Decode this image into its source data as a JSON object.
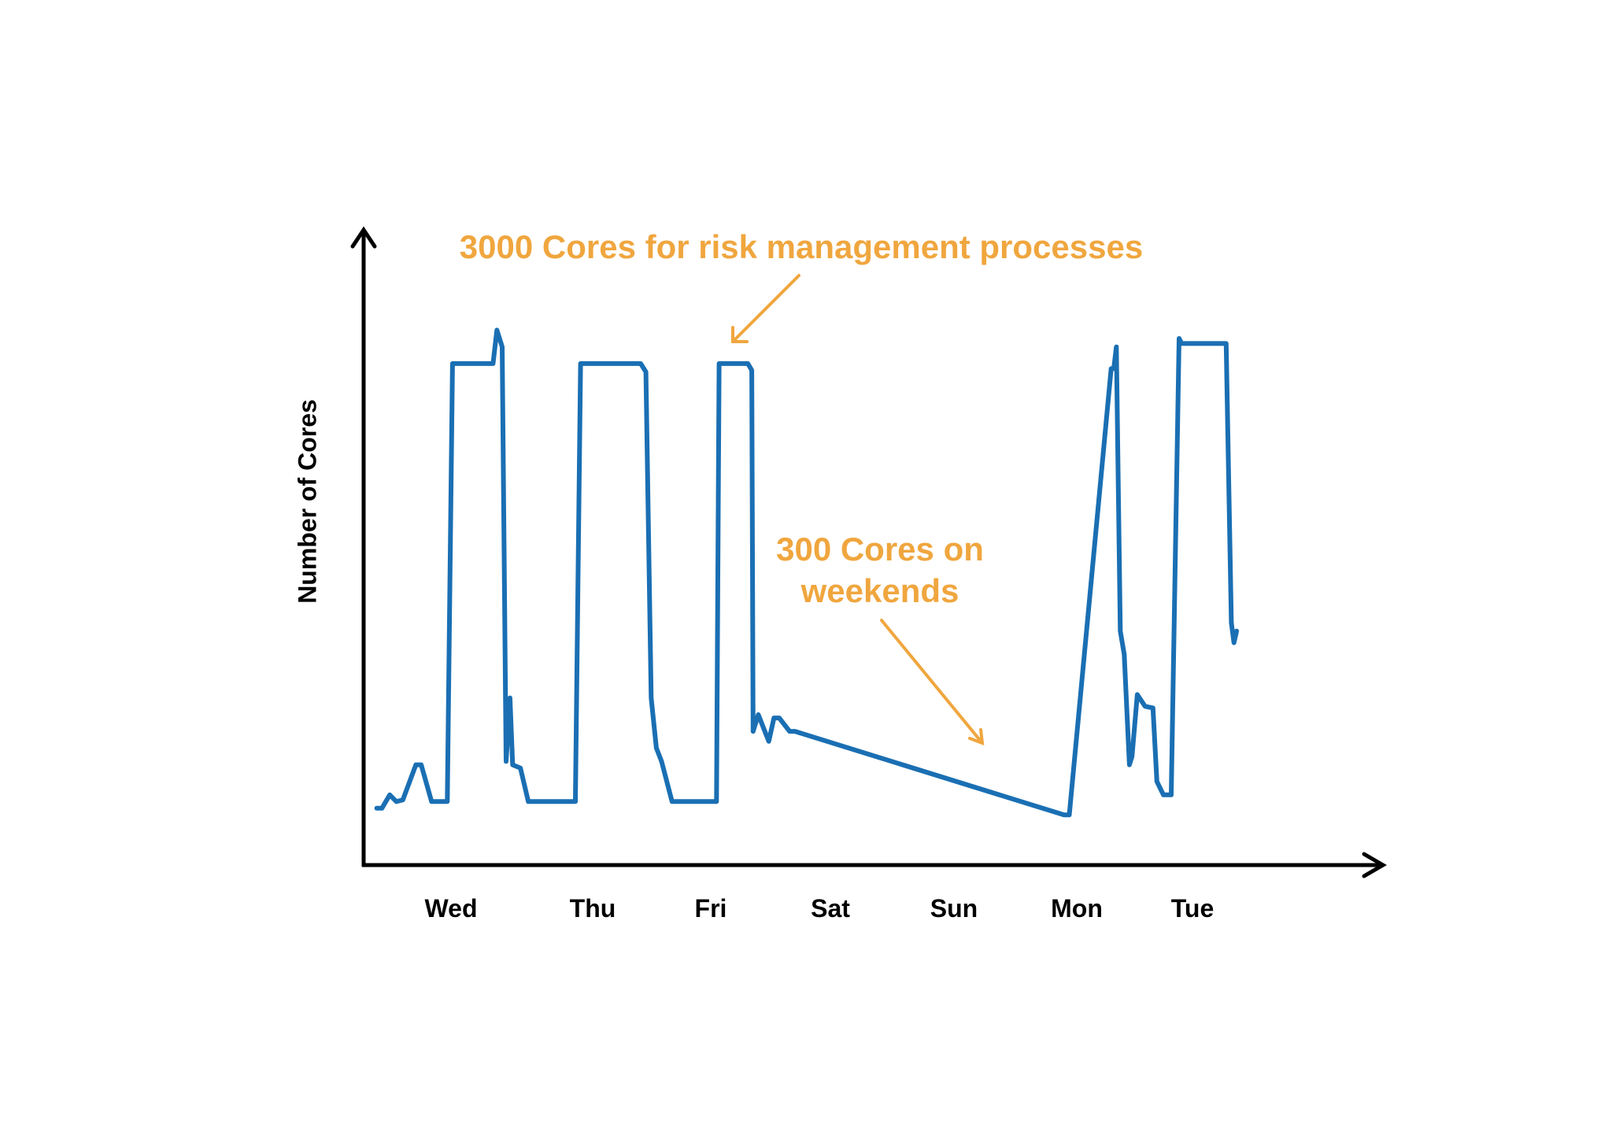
{
  "chart_data": {
    "type": "line",
    "xlabel": "",
    "ylabel": "Number of Cores",
    "categories": [
      "Wed",
      "Thu",
      "Fri",
      "Sat",
      "Sun",
      "Mon",
      "Tue"
    ],
    "x_range": [
      0,
      7.8
    ],
    "y_range": [
      0,
      3800
    ],
    "series": [
      {
        "x": [
          0.1,
          0.14,
          0.2,
          0.25,
          0.3,
          0.4,
          0.44,
          0.52,
          0.58,
          0.64,
          0.68,
          0.99,
          1.02,
          1.06,
          1.09,
          1.12,
          1.14,
          1.2,
          1.26,
          1.36,
          1.62,
          1.66,
          2.12,
          2.16,
          2.2,
          2.24,
          2.28,
          2.36,
          2.7,
          2.72,
          2.94,
          2.97,
          2.98,
          3.02,
          3.08,
          3.1,
          3.14,
          3.18,
          3.26,
          3.3,
          5.36,
          5.4,
          5.72,
          5.74,
          5.76,
          5.79,
          5.82,
          5.86,
          5.88,
          5.92,
          5.98,
          6.04,
          6.07,
          6.12,
          6.18,
          6.24,
          6.26,
          6.6,
          6.64,
          6.66,
          6.68
        ],
        "y": [
          340,
          340,
          420,
          380,
          390,
          600,
          600,
          380,
          380,
          380,
          3000,
          3000,
          3200,
          3100,
          620,
          1000,
          600,
          580,
          380,
          380,
          380,
          3000,
          3000,
          2950,
          1000,
          700,
          620,
          380,
          380,
          3000,
          3000,
          2960,
          800,
          900,
          780,
          740,
          880,
          880,
          800,
          800,
          300,
          300,
          2970,
          2970,
          3100,
          1400,
          1260,
          600,
          650,
          1020,
          950,
          940,
          500,
          420,
          420,
          3150,
          3120,
          3120,
          1450,
          1330,
          1400
        ]
      }
    ],
    "annotations": [
      {
        "id": "peak",
        "text": "3000 Cores for risk management processes",
        "x": 2.98,
        "y": 3000
      },
      {
        "id": "weekend",
        "text_lines": [
          "300 Cores on",
          "weekends"
        ],
        "x": 4.5,
        "y": 300
      }
    ],
    "grid": false,
    "legend": "none"
  },
  "colors": {
    "line": "#1a6fb3",
    "annotation": "#f0a63e",
    "axis": "#000000"
  }
}
